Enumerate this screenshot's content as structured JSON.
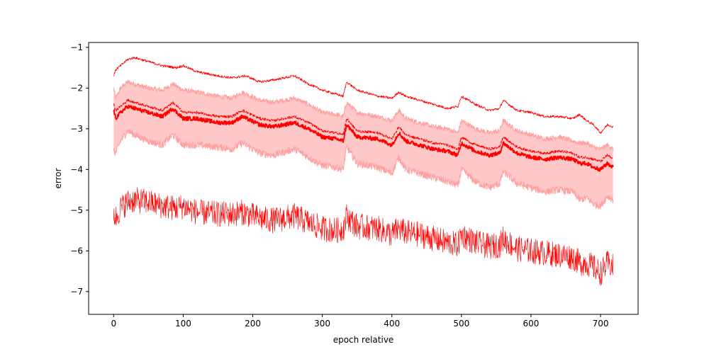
{
  "chart_data": {
    "type": "line",
    "title": "",
    "xlabel": "epoch relative",
    "ylabel": "error",
    "xlim": [
      -36,
      754
    ],
    "ylim": [
      -7.56,
      -0.88
    ],
    "xticks": [
      0,
      100,
      200,
      300,
      400,
      500,
      600,
      700
    ],
    "yticks": [
      -7,
      -6,
      -5,
      -4,
      -3,
      -2,
      -1
    ],
    "xtick_labels": [
      "0",
      "100",
      "200",
      "300",
      "400",
      "500",
      "600",
      "700"
    ],
    "ytick_labels": [
      "−7",
      "−6",
      "−5",
      "−4",
      "−3",
      "−2",
      "−1"
    ],
    "grid": false,
    "legend": "none",
    "x_range": [
      0,
      718
    ],
    "colors": {
      "line": "#ff0000",
      "band": "#ffc8c8",
      "band_edge": "#ffa0a0"
    },
    "series": [
      {
        "role": "upper",
        "style": "thin",
        "x": [
          0,
          3,
          10,
          20,
          30,
          50,
          70,
          90,
          100,
          120,
          150,
          170,
          190,
          210,
          230,
          260,
          280,
          300,
          320,
          330,
          335,
          350,
          380,
          400,
          410,
          420,
          440,
          460,
          480,
          495,
          500,
          520,
          540,
          555,
          560,
          580,
          600,
          620,
          640,
          660,
          670,
          680,
          690,
          700,
          710,
          718
        ],
        "y": [
          -1.7,
          -1.55,
          -1.45,
          -1.3,
          -1.25,
          -1.35,
          -1.45,
          -1.5,
          -1.45,
          -1.6,
          -1.7,
          -1.75,
          -1.7,
          -1.85,
          -1.8,
          -1.7,
          -1.9,
          -2.05,
          -2.15,
          -2.2,
          -1.85,
          -2.05,
          -2.2,
          -2.25,
          -2.1,
          -2.2,
          -2.3,
          -2.4,
          -2.5,
          -2.45,
          -2.2,
          -2.4,
          -2.55,
          -2.5,
          -2.3,
          -2.55,
          -2.6,
          -2.7,
          -2.7,
          -2.75,
          -2.65,
          -2.8,
          -2.9,
          -3.1,
          -2.9,
          -2.95
        ]
      },
      {
        "role": "mean-dashed",
        "style": "dashed",
        "x": [
          0,
          3,
          10,
          20,
          30,
          50,
          70,
          85,
          100,
          120,
          150,
          170,
          185,
          210,
          230,
          260,
          280,
          300,
          320,
          330,
          335,
          350,
          380,
          400,
          410,
          420,
          440,
          460,
          480,
          495,
          500,
          520,
          540,
          555,
          560,
          580,
          600,
          620,
          640,
          660,
          670,
          680,
          690,
          700,
          710,
          718
        ],
        "y": [
          -2.4,
          -2.55,
          -2.45,
          -2.3,
          -2.35,
          -2.45,
          -2.55,
          -2.35,
          -2.6,
          -2.6,
          -2.7,
          -2.7,
          -2.55,
          -2.75,
          -2.8,
          -2.7,
          -2.85,
          -3.05,
          -3.1,
          -3.15,
          -2.75,
          -3.05,
          -3.1,
          -3.25,
          -2.95,
          -3.15,
          -3.25,
          -3.35,
          -3.4,
          -3.5,
          -3.2,
          -3.4,
          -3.5,
          -3.45,
          -3.2,
          -3.45,
          -3.55,
          -3.6,
          -3.55,
          -3.6,
          -3.7,
          -3.7,
          -3.75,
          -3.8,
          -3.65,
          -3.75
        ]
      },
      {
        "role": "median",
        "style": "thick",
        "x": [
          0,
          3,
          10,
          20,
          30,
          50,
          70,
          85,
          100,
          120,
          150,
          170,
          185,
          210,
          230,
          260,
          280,
          300,
          320,
          330,
          335,
          350,
          380,
          400,
          410,
          420,
          440,
          460,
          480,
          495,
          500,
          520,
          540,
          555,
          560,
          580,
          600,
          620,
          640,
          660,
          670,
          680,
          690,
          700,
          710,
          718
        ],
        "y": [
          -2.55,
          -2.75,
          -2.6,
          -2.45,
          -2.5,
          -2.6,
          -2.7,
          -2.5,
          -2.75,
          -2.75,
          -2.85,
          -2.85,
          -2.7,
          -2.9,
          -2.95,
          -2.85,
          -3.0,
          -3.2,
          -3.25,
          -3.3,
          -2.9,
          -3.2,
          -3.25,
          -3.4,
          -3.1,
          -3.3,
          -3.4,
          -3.5,
          -3.55,
          -3.65,
          -3.35,
          -3.55,
          -3.65,
          -3.6,
          -3.35,
          -3.6,
          -3.7,
          -3.75,
          -3.7,
          -3.75,
          -3.85,
          -3.85,
          -3.95,
          -4.0,
          -3.85,
          -3.95
        ]
      },
      {
        "role": "band-upper",
        "style": "band",
        "x": [
          0,
          3,
          10,
          20,
          30,
          50,
          70,
          85,
          100,
          120,
          150,
          170,
          185,
          210,
          230,
          260,
          280,
          300,
          320,
          330,
          335,
          350,
          380,
          400,
          410,
          420,
          440,
          460,
          480,
          495,
          500,
          520,
          540,
          555,
          560,
          580,
          600,
          620,
          640,
          660,
          670,
          680,
          690,
          700,
          710,
          718
        ],
        "y": [
          -2.0,
          -2.25,
          -2.0,
          -1.85,
          -1.9,
          -2.0,
          -2.05,
          -1.9,
          -2.05,
          -2.1,
          -2.2,
          -2.25,
          -2.1,
          -2.3,
          -2.35,
          -2.25,
          -2.4,
          -2.6,
          -2.65,
          -2.7,
          -2.35,
          -2.6,
          -2.7,
          -2.8,
          -2.55,
          -2.75,
          -2.85,
          -2.95,
          -3.0,
          -3.1,
          -2.8,
          -3.0,
          -3.1,
          -3.05,
          -2.8,
          -3.05,
          -3.15,
          -3.25,
          -3.2,
          -3.3,
          -3.35,
          -3.35,
          -3.45,
          -3.5,
          -3.4,
          -3.5
        ]
      },
      {
        "role": "band-lower",
        "style": "band",
        "x": [
          0,
          3,
          10,
          20,
          30,
          50,
          70,
          85,
          100,
          120,
          150,
          170,
          185,
          210,
          230,
          260,
          280,
          300,
          320,
          330,
          335,
          350,
          380,
          400,
          410,
          420,
          440,
          460,
          480,
          495,
          500,
          520,
          540,
          555,
          560,
          580,
          600,
          620,
          640,
          660,
          670,
          680,
          690,
          700,
          710,
          718
        ],
        "y": [
          -3.55,
          -3.6,
          -3.3,
          -3.05,
          -3.15,
          -3.3,
          -3.4,
          -3.15,
          -3.4,
          -3.4,
          -3.45,
          -3.5,
          -3.35,
          -3.6,
          -3.65,
          -3.5,
          -3.7,
          -3.9,
          -3.95,
          -4.0,
          -3.45,
          -3.85,
          -3.95,
          -4.1,
          -3.7,
          -4.0,
          -4.1,
          -4.2,
          -4.3,
          -4.4,
          -4.0,
          -4.3,
          -4.45,
          -4.35,
          -4.05,
          -4.35,
          -4.45,
          -4.55,
          -4.5,
          -4.55,
          -4.75,
          -4.7,
          -4.85,
          -4.9,
          -4.65,
          -4.75
        ]
      },
      {
        "role": "lower-noisy",
        "style": "noisy",
        "x": [
          0,
          3,
          10,
          20,
          30,
          50,
          70,
          90,
          100,
          120,
          150,
          170,
          185,
          210,
          230,
          260,
          280,
          300,
          320,
          330,
          335,
          350,
          380,
          400,
          410,
          420,
          440,
          460,
          480,
          495,
          500,
          520,
          540,
          555,
          560,
          580,
          600,
          620,
          640,
          660,
          670,
          680,
          690,
          700,
          710,
          718
        ],
        "y": [
          -5.05,
          -5.2,
          -4.95,
          -4.8,
          -4.75,
          -4.8,
          -4.9,
          -4.95,
          -4.9,
          -5.05,
          -5.1,
          -5.1,
          -5.05,
          -5.2,
          -5.25,
          -5.15,
          -5.3,
          -5.45,
          -5.5,
          -5.45,
          -5.15,
          -5.4,
          -5.45,
          -5.6,
          -5.45,
          -5.55,
          -5.6,
          -5.7,
          -5.8,
          -5.85,
          -5.6,
          -5.8,
          -5.9,
          -5.85,
          -5.7,
          -5.95,
          -6.0,
          -6.05,
          -6.1,
          -6.15,
          -6.3,
          -6.3,
          -6.4,
          -6.55,
          -6.3,
          -6.4
        ]
      }
    ]
  }
}
